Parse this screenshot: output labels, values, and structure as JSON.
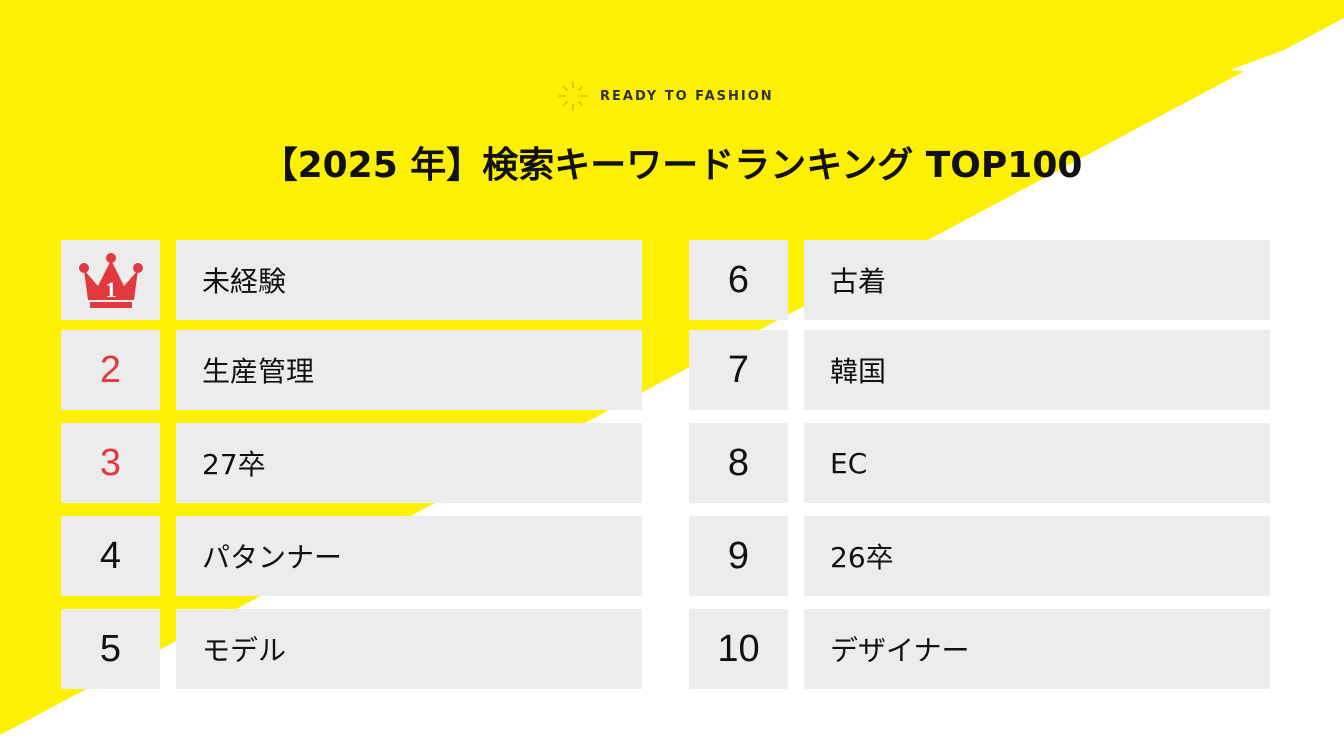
{
  "brand": {
    "name": "READY TO FASHION",
    "logo_icon": "sparkle-icon"
  },
  "title": "【2025 年】検索キーワードランキング TOP100",
  "colors": {
    "yellow": "#fdf003",
    "box": "#ececec",
    "top_rank_red": "#e0393e",
    "text": "#111111"
  },
  "rankings": [
    {
      "rank": "1",
      "keyword": "未経験",
      "icon": "crown-icon"
    },
    {
      "rank": "2",
      "keyword": "生産管理"
    },
    {
      "rank": "3",
      "keyword": "27卒"
    },
    {
      "rank": "4",
      "keyword": "パタンナー"
    },
    {
      "rank": "5",
      "keyword": "モデル"
    },
    {
      "rank": "6",
      "keyword": "古着"
    },
    {
      "rank": "7",
      "keyword": "韓国"
    },
    {
      "rank": "8",
      "keyword": "EC"
    },
    {
      "rank": "9",
      "keyword": "26卒"
    },
    {
      "rank": "10",
      "keyword": "デザイナー"
    }
  ]
}
